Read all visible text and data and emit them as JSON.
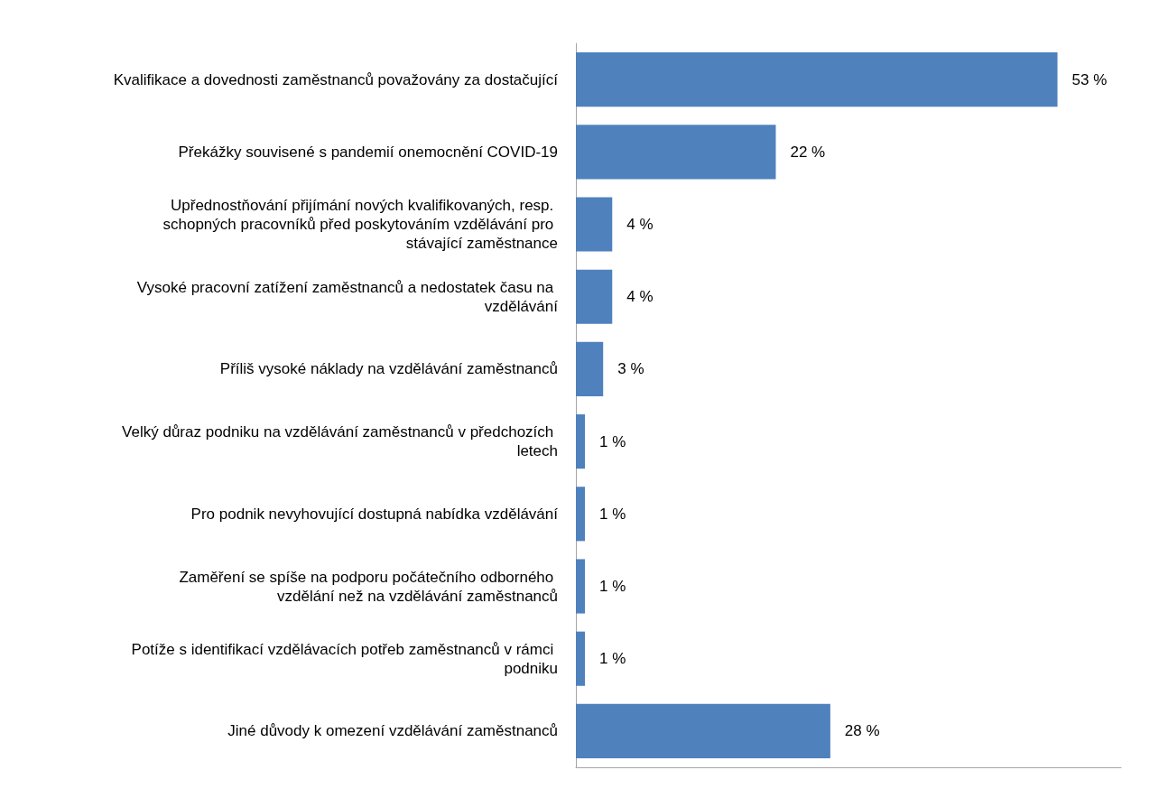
{
  "chart_data": {
    "type": "bar",
    "orientation": "horizontal",
    "categories": [
      "Kvalifikace a dovednosti zaměstnanců považovány za dostačující",
      "Překážky souvisené s pandemií onemocnění COVID-19",
      "Upřednostňování přijímání nových kvalifikovaných, resp. schopných pracovníků před poskytováním vzdělávání pro stávající zaměstnance",
      "Vysoké pracovní zatížení zaměstnanců a nedostatek času na vzdělávání",
      "Příliš vysoké náklady na vzdělávání zaměstnanců",
      "Velký důraz podniku na vzdělávání zaměstnanců v předchozích letech",
      "Pro podnik nevyhovující dostupná nabídka vzdělávání",
      "Zaměření se spíše na podporu počátečního odborného vzdělání než na vzdělávání zaměstnanců",
      "Potíže s identifikací vzdělávacích potřeb zaměstnanců v rámci podniku",
      "Jiné důvody k omezení vzdělávání zaměstnanců"
    ],
    "values": [
      53,
      22,
      4,
      4,
      3,
      1,
      1,
      1,
      1,
      28
    ],
    "value_labels": [
      "53 %",
      "22 %",
      "4 %",
      "4 %",
      "3 %",
      "1 %",
      "1 %",
      "1 %",
      "1 %",
      "28 %"
    ],
    "color": "#4f81bd"
  }
}
